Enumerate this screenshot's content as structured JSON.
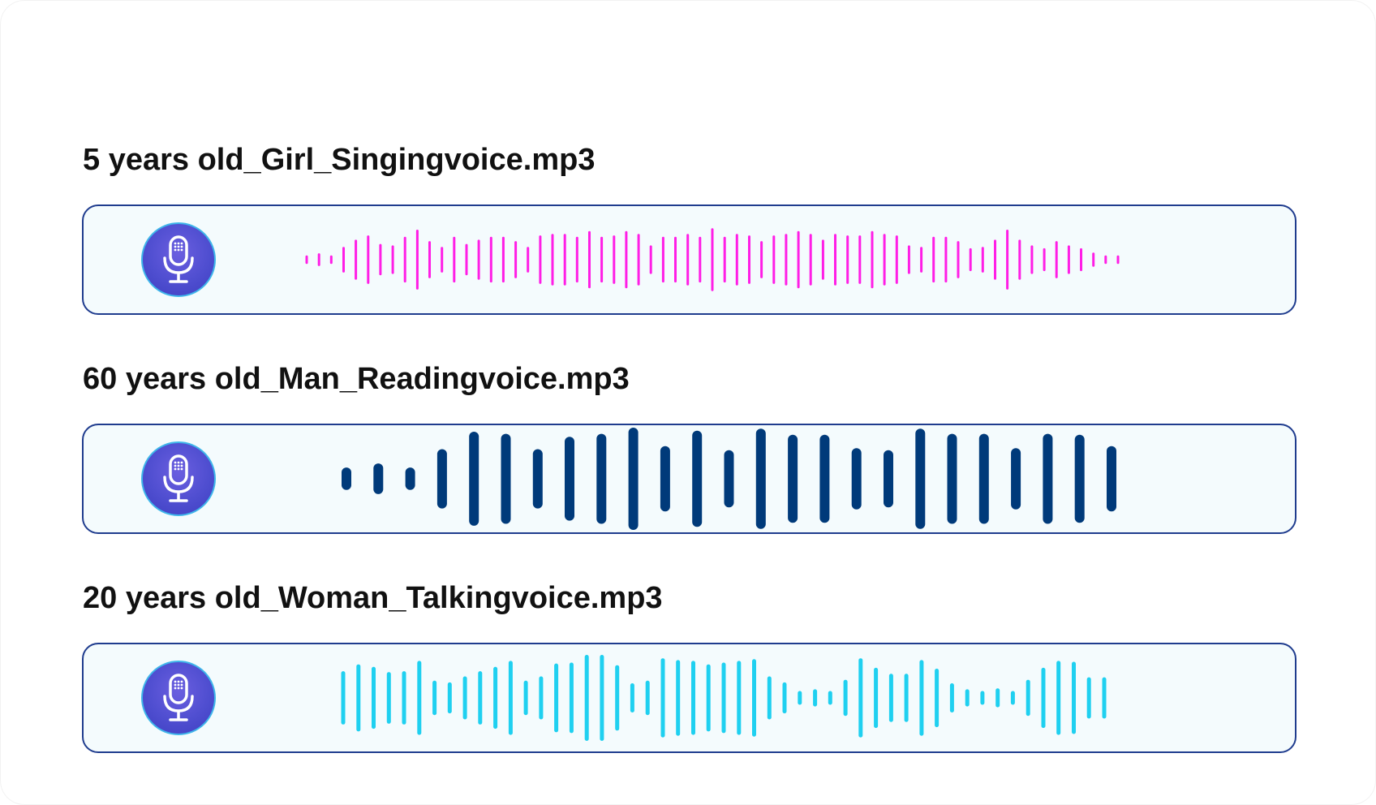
{
  "tracks": [
    {
      "filename": "5 years old_Girl_Singingvoice.mp3",
      "color": "#ff1ee6",
      "icon": "microphone-icon",
      "levels": [
        0.12,
        0.18,
        0.12,
        0.36,
        0.56,
        0.68,
        0.44,
        0.4,
        0.64,
        0.84,
        0.52,
        0.36,
        0.64,
        0.44,
        0.56,
        0.64,
        0.64,
        0.52,
        0.36,
        0.68,
        0.72,
        0.72,
        0.64,
        0.8,
        0.64,
        0.68,
        0.8,
        0.72,
        0.4,
        0.64,
        0.64,
        0.72,
        0.64,
        0.88,
        0.64,
        0.72,
        0.68,
        0.52,
        0.68,
        0.72,
        0.8,
        0.72,
        0.56,
        0.72,
        0.68,
        0.68,
        0.8,
        0.72,
        0.68,
        0.4,
        0.36,
        0.64,
        0.64,
        0.52,
        0.32,
        0.36,
        0.56,
        0.84,
        0.56,
        0.4,
        0.32,
        0.52,
        0.4,
        0.32,
        0.2,
        0.12,
        0.12
      ]
    },
    {
      "filename": "60 years old_Man_Readingvoice.mp3",
      "color": "#003a7a",
      "icon": "microphone-icon",
      "levels": [
        0.22,
        0.3,
        0.22,
        0.58,
        0.92,
        0.88,
        0.58,
        0.82,
        0.88,
        1.0,
        0.64,
        0.94,
        0.56,
        0.98,
        0.86,
        0.86,
        0.6,
        0.56,
        0.98,
        0.88,
        0.88,
        0.6,
        0.88,
        0.86,
        0.64
      ]
    },
    {
      "filename": "20 years old_Woman_Talkingvoice.mp3",
      "color": "#1fd0f0",
      "icon": "microphone-icon",
      "levels": [
        0.62,
        0.78,
        0.72,
        0.6,
        0.62,
        0.86,
        0.4,
        0.36,
        0.5,
        0.62,
        0.72,
        0.86,
        0.4,
        0.5,
        0.8,
        0.82,
        1.0,
        1.0,
        0.76,
        0.34,
        0.4,
        0.92,
        0.88,
        0.86,
        0.78,
        0.82,
        0.86,
        0.9,
        0.5,
        0.36,
        0.16,
        0.2,
        0.16,
        0.42,
        0.92,
        0.7,
        0.56,
        0.56,
        0.88,
        0.68,
        0.34,
        0.2,
        0.16,
        0.22,
        0.16,
        0.42,
        0.7,
        0.86,
        0.84,
        0.48,
        0.48
      ]
    }
  ]
}
